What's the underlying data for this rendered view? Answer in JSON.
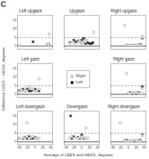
{
  "title": "C",
  "xlabel": "Average of LEES and HESS, degrees",
  "ylabel": "Difference LEES − HESS, degrees",
  "legend": "center",
  "grid": false,
  "chart_data": [
    {
      "type": "scatter",
      "title": "Left upgaze",
      "tick_labels": "y",
      "xlim": [
        -45,
        45
      ],
      "ylim": [
        -2,
        18
      ],
      "xticks": [
        -40,
        -20,
        0,
        20,
        40
      ],
      "yticks": [
        0,
        5,
        10,
        15
      ],
      "hlines": [
        {
          "value": 0,
          "color": "#000000",
          "line_style": "solid"
        },
        {
          "value": 5,
          "color": "#777777",
          "line_style": "dashed"
        }
      ],
      "series": [
        {
          "name": "Right",
          "color": "#888888",
          "marker": "circle_open",
          "x": [
            -40,
            30,
            32,
            33,
            34,
            34,
            36
          ],
          "values": [
            0.5,
            0.5,
            1.0,
            0.5,
            1.5,
            0.3,
            7
          ]
        },
        {
          "name": "Left",
          "color": "#111111",
          "marker": "square",
          "x": [
            -5,
            33,
            34,
            35,
            35
          ],
          "values": [
            2.5,
            0.5,
            0.5,
            0.3,
            1.0
          ]
        }
      ]
    },
    {
      "type": "scatter",
      "title": "Upgaze",
      "tick_labels": false,
      "xlim": [
        -45,
        45
      ],
      "ylim": [
        -2,
        18
      ],
      "xticks": [
        -40,
        -20,
        0,
        20,
        40
      ],
      "yticks": [
        0,
        5,
        10,
        15
      ],
      "hlines": [
        {
          "value": 0,
          "color": "#000000",
          "line_style": "solid"
        },
        {
          "value": 5,
          "color": "#777777",
          "line_style": "dashed"
        }
      ],
      "series": [
        {
          "name": "Right",
          "color": "#888888",
          "marker": "circle_open",
          "x": [
            -30,
            -22,
            -18,
            -10,
            -5,
            0,
            0,
            2,
            5,
            10,
            12,
            30
          ],
          "values": [
            1.5,
            2.5,
            1.5,
            2.0,
            3.0,
            2.5,
            1.5,
            2.0,
            2.5,
            2.5,
            3.5,
            8.0
          ]
        },
        {
          "name": "Left",
          "color": "#111111",
          "marker": "square",
          "x": [
            -30,
            -20,
            -15,
            -8,
            0,
            2,
            5,
            10,
            15,
            20,
            25,
            28
          ],
          "values": [
            2.0,
            3.5,
            2.5,
            3.0,
            3.5,
            2.5,
            4.5,
            1.5,
            2.0,
            1.5,
            1.5,
            2.0
          ]
        }
      ]
    },
    {
      "type": "scatter",
      "title": "Right upgaze",
      "tick_labels": false,
      "xlim": [
        -45,
        45
      ],
      "ylim": [
        -2,
        18
      ],
      "xticks": [
        -40,
        -20,
        0,
        20,
        40
      ],
      "yticks": [
        0,
        5,
        10,
        15
      ],
      "hlines": [
        {
          "value": 0,
          "color": "#000000",
          "line_style": "solid"
        },
        {
          "value": 5,
          "color": "#777777",
          "line_style": "dashed"
        }
      ],
      "series": [
        {
          "name": "Right",
          "color": "#888888",
          "marker": "circle_open",
          "x": [
            -10,
            -5,
            0,
            5,
            10,
            15,
            20,
            25,
            30,
            35,
            35
          ],
          "values": [
            12,
            0.5,
            0.5,
            0.5,
            0.3,
            0.5,
            0.5,
            0.5,
            0.5,
            5.0,
            5.5
          ]
        },
        {
          "name": "Left",
          "color": "#111111",
          "marker": "square",
          "x": [
            -5,
            0,
            5,
            10,
            15,
            20,
            25,
            30,
            35,
            35
          ],
          "values": [
            0.5,
            0.5,
            0.3,
            0.5,
            0.5,
            0.5,
            0.5,
            1.0,
            4.5,
            5.5
          ]
        }
      ]
    },
    {
      "type": "scatter",
      "title": "Left gaze",
      "tick_labels": "y",
      "xlim": [
        -45,
        45
      ],
      "ylim": [
        -2,
        18
      ],
      "xticks": [
        -40,
        -20,
        0,
        20,
        40
      ],
      "yticks": [
        0,
        5,
        10,
        15
      ],
      "hlines": [
        {
          "value": 0,
          "color": "#000000",
          "line_style": "solid"
        },
        {
          "value": 5,
          "color": "#777777",
          "line_style": "dashed"
        }
      ],
      "series": [
        {
          "name": "Right",
          "color": "#888888",
          "marker": "circle_open",
          "x": [
            -40,
            -35,
            -30,
            -25,
            -25,
            -20,
            -15,
            -10,
            -5,
            0,
            5,
            10,
            10
          ],
          "values": [
            1.5,
            2.5,
            2.0,
            3.0,
            2.0,
            2.0,
            4.0,
            3.0,
            3.0,
            2.0,
            2.0,
            3.0,
            9.0
          ]
        },
        {
          "name": "Left",
          "color": "#111111",
          "marker": "square",
          "x": [
            -40,
            -35,
            -30,
            -25,
            -20,
            -15,
            -10,
            -5,
            0,
            5,
            10
          ],
          "values": [
            2.0,
            2.5,
            3.0,
            2.0,
            3.0,
            2.0,
            2.0,
            2.5,
            3.0,
            2.0,
            2.0
          ]
        }
      ]
    },
    {
      "type": "scatter",
      "title": "Right gaze",
      "tick_labels": false,
      "xlim": [
        -45,
        45
      ],
      "ylim": [
        -2,
        18
      ],
      "xticks": [
        -40,
        -20,
        0,
        20,
        40
      ],
      "yticks": [
        0,
        5,
        10,
        15
      ],
      "hlines": [
        {
          "value": 0,
          "color": "#000000",
          "line_style": "solid"
        },
        {
          "value": 5,
          "color": "#777777",
          "line_style": "dashed"
        }
      ],
      "series": [
        {
          "name": "Right",
          "color": "#888888",
          "marker": "circle_open",
          "x": [
            -5,
            0,
            5,
            10,
            15,
            20,
            25,
            30,
            35,
            35
          ],
          "values": [
            12,
            0.5,
            0.5,
            1.0,
            0.5,
            1.0,
            0.5,
            0.5,
            0.5,
            3.5
          ]
        },
        {
          "name": "Left",
          "color": "#111111",
          "marker": "square",
          "x": [
            0,
            5,
            10,
            15,
            20,
            25,
            30,
            35,
            35
          ],
          "values": [
            0.5,
            1.0,
            0.5,
            0.5,
            0.5,
            1.0,
            0.5,
            4.0,
            4.5
          ]
        }
      ]
    },
    {
      "type": "scatter",
      "title": "Left downgaze",
      "tick_labels": true,
      "xlim": [
        -45,
        45
      ],
      "ylim": [
        -2,
        18
      ],
      "xticks": [
        -40,
        -20,
        0,
        20,
        40
      ],
      "yticks": [
        0,
        5,
        10,
        15
      ],
      "hlines": [
        {
          "value": 0,
          "color": "#000000",
          "line_style": "solid"
        },
        {
          "value": 5,
          "color": "#777777",
          "line_style": "dashed"
        }
      ],
      "series": [
        {
          "name": "Right",
          "color": "#888888",
          "marker": "circle_open",
          "x": [
            -20,
            -40,
            -30,
            -25,
            -20,
            -15,
            -10,
            -5,
            0,
            5,
            10
          ],
          "values": [
            11,
            2.0,
            2.5,
            2.0,
            3.0,
            2.0,
            2.5,
            3.0,
            2.0,
            2.0,
            2.0
          ]
        },
        {
          "name": "Left",
          "color": "#111111",
          "marker": "square",
          "x": [
            -40,
            -30,
            -25,
            -20,
            -15,
            -10,
            -5,
            0,
            5
          ],
          "values": [
            2.0,
            2.0,
            2.5,
            2.0,
            3.0,
            2.0,
            2.0,
            2.5,
            2.0
          ]
        }
      ]
    },
    {
      "type": "scatter",
      "title": "Downgaze",
      "tick_labels": "x",
      "xlim": [
        -45,
        45
      ],
      "ylim": [
        -2,
        18
      ],
      "xticks": [
        -40,
        -20,
        0,
        20,
        40
      ],
      "yticks": [
        0,
        5,
        10,
        15
      ],
      "hlines": [
        {
          "value": 0,
          "color": "#000000",
          "line_style": "solid"
        },
        {
          "value": 5,
          "color": "#777777",
          "line_style": "dashed"
        }
      ],
      "series": [
        {
          "name": "Right",
          "color": "#888888",
          "marker": "circle_open",
          "x": [
            -30,
            -25,
            -20,
            -10,
            -5,
            0,
            5,
            10,
            10,
            15
          ],
          "values": [
            2.0,
            3.0,
            2.0,
            2.0,
            2.5,
            3.0,
            2.5,
            2.0,
            8.0,
            2.0
          ]
        },
        {
          "name": "Left",
          "color": "#111111",
          "marker": "square",
          "x": [
            -28,
            -25,
            -20,
            -10,
            -5,
            0,
            5,
            10
          ],
          "values": [
            15,
            2.0,
            3.0,
            2.5,
            2.0,
            4.0,
            2.0,
            2.0
          ]
        }
      ]
    },
    {
      "type": "scatter",
      "title": "Right downgaze",
      "tick_labels": "x",
      "xlim": [
        -45,
        45
      ],
      "ylim": [
        -2,
        18
      ],
      "xticks": [
        -40,
        -20,
        0,
        20,
        40
      ],
      "yticks": [
        0,
        5,
        10,
        15
      ],
      "hlines": [
        {
          "value": 0,
          "color": "#000000",
          "line_style": "solid"
        },
        {
          "value": 5,
          "color": "#777777",
          "line_style": "dashed"
        }
      ],
      "series": [
        {
          "name": "Right",
          "color": "#888888",
          "marker": "circle_open",
          "x": [
            -20,
            -10,
            -5,
            0,
            5,
            10,
            15,
            20,
            25,
            30,
            35
          ],
          "values": [
            11,
            0.5,
            0.5,
            0.5,
            0.5,
            0.5,
            1.0,
            0.5,
            0.5,
            0.5,
            3.5
          ]
        },
        {
          "name": "Left",
          "color": "#111111",
          "marker": "square",
          "x": [
            -10,
            -5,
            0,
            5,
            10,
            15,
            20,
            25,
            30,
            35
          ],
          "values": [
            0.5,
            1.0,
            0.5,
            0.5,
            0.5,
            0.5,
            0.5,
            0.5,
            1.0,
            4.0
          ]
        }
      ]
    }
  ]
}
